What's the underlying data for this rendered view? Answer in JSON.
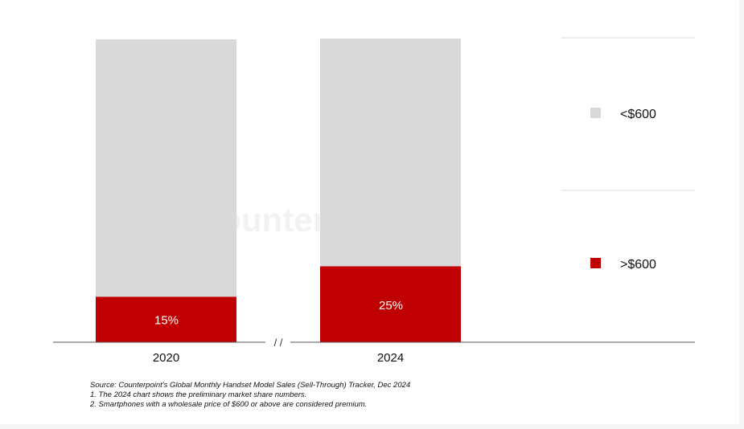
{
  "chart_data": {
    "type": "bar",
    "stacked": true,
    "percent_stacked": true,
    "categories": [
      "2020",
      "2024"
    ],
    "series": [
      {
        "name": "<$600",
        "values": [
          85,
          75
        ],
        "color": "#d9d9d9"
      },
      {
        "name": ">$600",
        "values": [
          15,
          25
        ],
        "color": "#c00000"
      }
    ],
    "data_labels": [
      "15%",
      "25%"
    ],
    "axis_break": "/ /",
    "ylim": [
      0,
      100
    ],
    "grid": false,
    "legend_placement": "right",
    "watermark": "Counterpoint"
  },
  "notes": {
    "source": "Source: Counterpoint's Global Monthly Handset Model Sales (Sell-Through) Tracker, Dec 2024",
    "note1": "1. The 2024 chart shows the preliminary market share numbers.",
    "note2": "2. Smartphones with a wholesale price of $600 or above are considered premium."
  }
}
